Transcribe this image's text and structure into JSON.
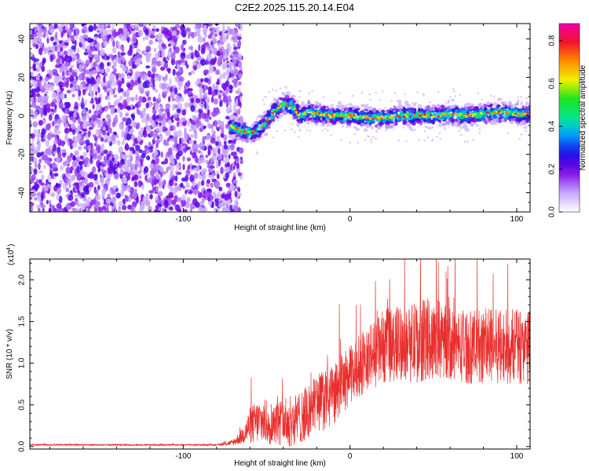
{
  "title": "C2E2.2025.115.20.14.E04",
  "chart_data": [
    {
      "type": "heatmap",
      "xlabel": "Height of straight line (km)",
      "ylabel": "Frequency (Hz)",
      "xlim": [
        -192,
        108
      ],
      "ylim": [
        -50,
        48
      ],
      "xticks": [
        -100,
        0,
        100
      ],
      "yticks": [
        -40,
        -20,
        0,
        20,
        40
      ],
      "colorbar": {
        "label": "Normalized spectral amplitude",
        "range": [
          0.0,
          0.88
        ],
        "ticks": [
          "0.0",
          "0.2",
          "0.4",
          "0.6",
          "0.8"
        ]
      },
      "noise_region_x": [
        -192,
        -65
      ],
      "signal_track": {
        "x": [
          -72,
          -65,
          -58,
          -50,
          -45,
          -40,
          -35,
          -30,
          -25,
          -20,
          -10,
          0,
          10,
          20,
          30,
          40,
          50,
          60,
          70,
          80,
          90,
          100,
          108
        ],
        "y": [
          -5,
          -8,
          -9,
          -3,
          3,
          6,
          5,
          0,
          2,
          1,
          0,
          0,
          -1,
          -1,
          0,
          0,
          0,
          1,
          0,
          1,
          2,
          1,
          1
        ]
      }
    },
    {
      "type": "line",
      "xlabel": "Height of straight line (km)",
      "ylabel": "SNR (10 * v/v)",
      "multiplier": "(x10",
      "multiplier_exp": "4",
      "multiplier_close": ")",
      "color": "#e8302e",
      "xlim": [
        -192,
        108
      ],
      "ylim": [
        -0.03,
        2.25
      ],
      "xticks": [
        -100,
        0,
        100
      ],
      "yticks": [
        "0.0",
        "0.5",
        "1.0",
        "1.5",
        "2.0"
      ],
      "series": [
        {
          "x": [
            -192,
            -170,
            -150,
            -130,
            -110,
            -90,
            -80,
            -75,
            -70,
            -65,
            -60,
            -55,
            -50,
            -45,
            -40,
            -35,
            -30,
            -25,
            -20,
            -15,
            -10,
            -5,
            0,
            5,
            10,
            15,
            20,
            30,
            40,
            50,
            60,
            70,
            80,
            90,
            100,
            108
          ],
          "y": [
            0.02,
            0.02,
            0.02,
            0.02,
            0.02,
            0.02,
            0.02,
            0.03,
            0.05,
            0.12,
            0.25,
            0.3,
            0.3,
            0.28,
            0.3,
            0.3,
            0.35,
            0.4,
            0.55,
            0.55,
            0.6,
            0.75,
            0.85,
            0.95,
            1.05,
            1.1,
            1.2,
            1.25,
            1.25,
            1.3,
            1.25,
            1.2,
            1.2,
            1.2,
            1.2,
            1.2
          ],
          "spread": [
            0.01,
            0.01,
            0.01,
            0.01,
            0.01,
            0.01,
            0.01,
            0.02,
            0.04,
            0.1,
            0.25,
            0.3,
            0.3,
            0.3,
            0.32,
            0.35,
            0.35,
            0.38,
            0.4,
            0.42,
            0.4,
            0.4,
            0.4,
            0.4,
            0.45,
            0.45,
            0.5,
            0.5,
            0.55,
            0.55,
            0.5,
            0.5,
            0.5,
            0.5,
            0.5,
            0.5
          ]
        }
      ]
    }
  ]
}
